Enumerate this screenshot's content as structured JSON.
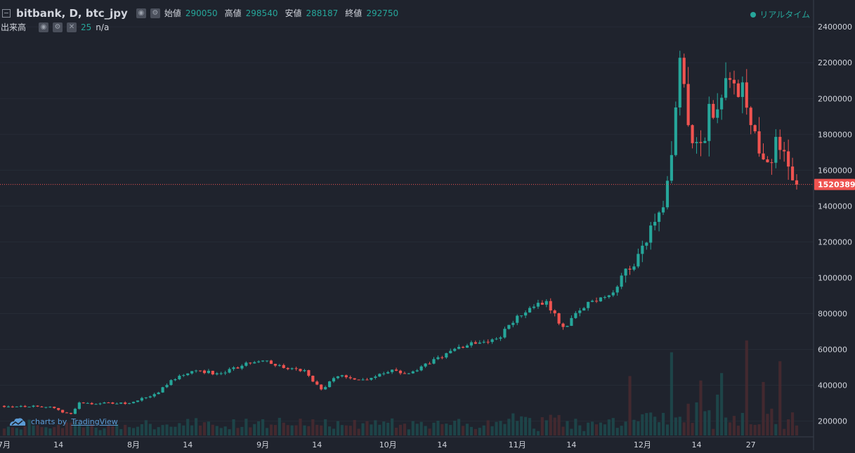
{
  "legend": {
    "symbol": "bitbank, D, btc_jpy",
    "open_label": "始値",
    "open": "290050",
    "high_label": "高値",
    "high": "298540",
    "low_label": "安値",
    "low": "288187",
    "close_label": "終値",
    "close": "292750",
    "volume_label": "出来高",
    "volume_length": "25",
    "volume_value": "n/a"
  },
  "realtime": {
    "label": "リアルタイム"
  },
  "watermark": {
    "prefix": "charts by",
    "brand": "TradingView"
  },
  "price_line": {
    "value": 1520389,
    "label": "1520389"
  },
  "colors": {
    "background": "#1f232d",
    "up": "#26a69a",
    "down": "#ef5350",
    "up_volume": "#1d4a4e",
    "down_volume": "#4a2a30",
    "axis_text": "#d1d4dc",
    "price_line": "#ef5350"
  },
  "chart_data": {
    "type": "candlestick",
    "title": "",
    "y_axis": {
      "position": "right",
      "min": 120000,
      "max": 2440000,
      "ticks": [
        200000,
        400000,
        600000,
        800000,
        1000000,
        1200000,
        1400000,
        1600000,
        1800000,
        2000000,
        2200000,
        2400000
      ],
      "tick_labels": [
        "200000",
        "400000",
        "600000",
        "800000",
        "1000000",
        "1200000",
        "1400000",
        "1600000",
        "1800000",
        "2000000",
        "2200000",
        "2400000"
      ]
    },
    "x_axis": {
      "labels": [
        "7月",
        "14",
        "8月",
        "14",
        "9月",
        "14",
        "10月",
        "14",
        "11月",
        "14",
        "12月",
        "14",
        "27"
      ],
      "label_days": [
        0,
        13,
        31,
        44,
        62,
        75,
        92,
        105,
        123,
        136,
        153,
        166,
        179
      ]
    },
    "day_count": 186,
    "anchors": [
      [
        0,
        285000
      ],
      [
        10,
        282000
      ],
      [
        16,
        238000
      ],
      [
        18,
        300000
      ],
      [
        30,
        300000
      ],
      [
        36,
        348000
      ],
      [
        42,
        458000
      ],
      [
        46,
        485000
      ],
      [
        52,
        462000
      ],
      [
        58,
        520000
      ],
      [
        62,
        548000
      ],
      [
        66,
        505000
      ],
      [
        72,
        478000
      ],
      [
        76,
        375000
      ],
      [
        80,
        455000
      ],
      [
        86,
        430000
      ],
      [
        92,
        480000
      ],
      [
        98,
        468000
      ],
      [
        104,
        555000
      ],
      [
        112,
        640000
      ],
      [
        118,
        655000
      ],
      [
        124,
        800000
      ],
      [
        130,
        870000
      ],
      [
        134,
        720000
      ],
      [
        140,
        860000
      ],
      [
        146,
        920000
      ],
      [
        152,
        1150000
      ],
      [
        158,
        1340000
      ],
      [
        160,
        1650000
      ],
      [
        162,
        2200000
      ],
      [
        164,
        1800000
      ],
      [
        166,
        1700000
      ],
      [
        170,
        1950000
      ],
      [
        174,
        2200000
      ],
      [
        178,
        1980000
      ],
      [
        182,
        1700000
      ],
      [
        186,
        1720000
      ],
      [
        190,
        1520000
      ]
    ],
    "volume_spikes": [
      [
        150,
        400000
      ],
      [
        160,
        560000
      ],
      [
        167,
        370000
      ],
      [
        172,
        420000
      ],
      [
        178,
        640000
      ],
      [
        182,
        360000
      ],
      [
        186,
        500000
      ]
    ],
    "last_close": 1520389
  }
}
